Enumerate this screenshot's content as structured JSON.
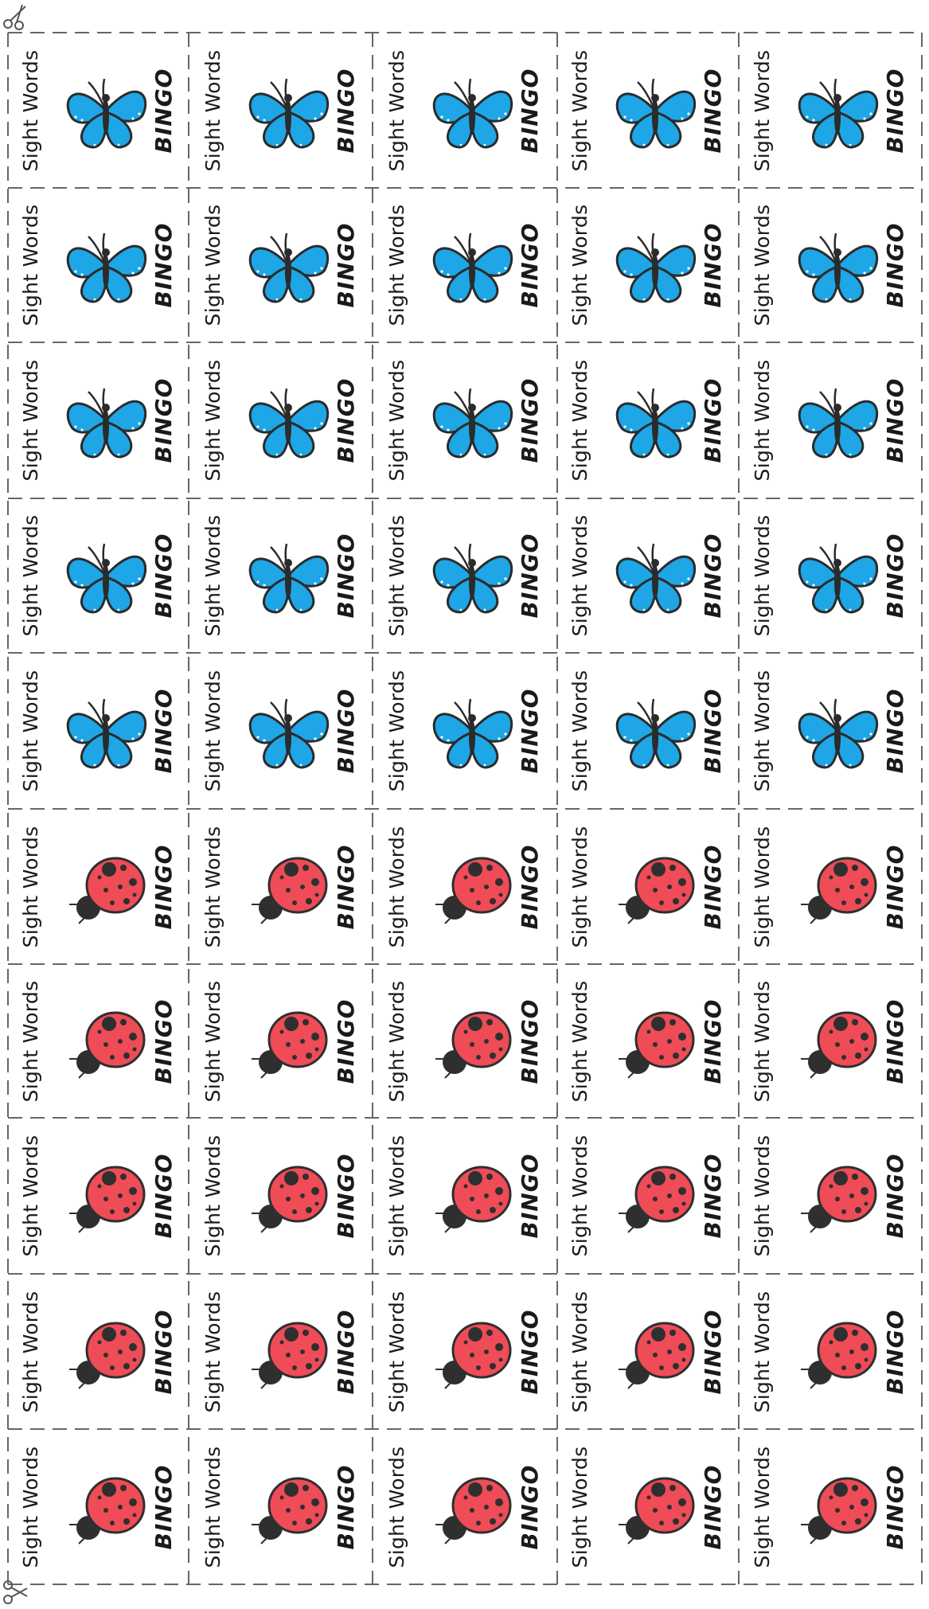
{
  "sheet": {
    "title_text": "Sight Words",
    "game_text": "BINGO",
    "rows": 10,
    "cols": 5,
    "row_themes": [
      "butterfly",
      "butterfly",
      "butterfly",
      "butterfly",
      "butterfly",
      "ladybug",
      "ladybug",
      "ladybug",
      "ladybug",
      "ladybug"
    ],
    "colors": {
      "butterfly_wing": "#1ea6e6",
      "butterfly_body": "#2b2b2b",
      "ladybug_shell": "#ef4c57",
      "ladybug_spots": "#2f2f2f",
      "cut_line": "#666666"
    },
    "icons": {
      "butterfly": "butterfly-icon",
      "ladybug": "ladybug-icon",
      "scissors": "scissors-icon"
    }
  }
}
